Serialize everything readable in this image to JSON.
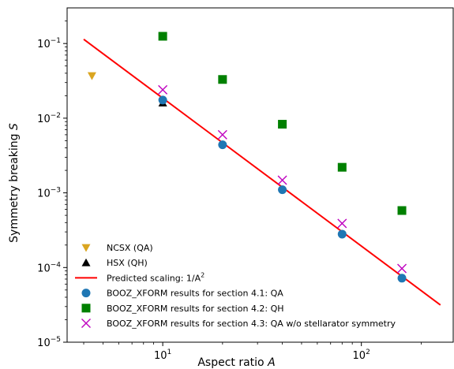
{
  "chart_data": {
    "type": "scatter",
    "xscale": "log",
    "yscale": "log",
    "xlim": [
      3.3,
      290
    ],
    "ylim": [
      1e-05,
      0.3
    ],
    "grid": false,
    "legend_position": "lower-left",
    "xlabel": "Aspect ratio",
    "xlabel_symbol": "A",
    "ylabel": "Symmetry breaking",
    "ylabel_symbol": "S",
    "x_ticks": [
      {
        "value": 10,
        "base": "10",
        "exp": "1"
      },
      {
        "value": 100,
        "base": "10",
        "exp": "2"
      }
    ],
    "y_ticks": [
      {
        "value": 1e-05,
        "base": "10",
        "exp": "−5"
      },
      {
        "value": 0.0001,
        "base": "10",
        "exp": "−4"
      },
      {
        "value": 0.001,
        "base": "10",
        "exp": "−3"
      },
      {
        "value": 0.01,
        "base": "10",
        "exp": "−2"
      },
      {
        "value": 0.1,
        "base": "10",
        "exp": "−1"
      }
    ],
    "series": [
      {
        "name": "NCSX (QA)",
        "marker": "triangle-down",
        "color": "#DAA520",
        "x": [
          4.4
        ],
        "y": [
          0.037
        ]
      },
      {
        "name": "HSX (QH)",
        "marker": "triangle-up",
        "color": "#000000",
        "x": [
          10
        ],
        "y": [
          0.016
        ]
      },
      {
        "name": "Predicted scaling: 1/A",
        "name_exp": "2",
        "marker": "line",
        "color": "#FF0000",
        "x": [
          4,
          250
        ],
        "y": [
          0.114,
          3.15e-05
        ]
      },
      {
        "name": "BOOZ_XFORM results for section 4.1: QA",
        "marker": "circle",
        "color": "#1F77B4",
        "x": [
          10,
          20,
          40,
          80,
          160
        ],
        "y": [
          0.0175,
          0.0044,
          0.0011,
          0.00028,
          7.2e-05
        ]
      },
      {
        "name": "BOOZ_XFORM results for section 4.2: QH",
        "marker": "square",
        "color": "#008000",
        "x": [
          10,
          20,
          40,
          80,
          160
        ],
        "y": [
          0.125,
          0.033,
          0.0083,
          0.0022,
          0.00058
        ]
      },
      {
        "name": "BOOZ_XFORM results for section 4.3: QA w/o stellarator symmetry",
        "marker": "x",
        "color": "#BF00BF",
        "x": [
          10,
          20,
          40,
          80,
          160
        ],
        "y": [
          0.024,
          0.006,
          0.00148,
          0.00039,
          9.7e-05
        ]
      }
    ]
  }
}
